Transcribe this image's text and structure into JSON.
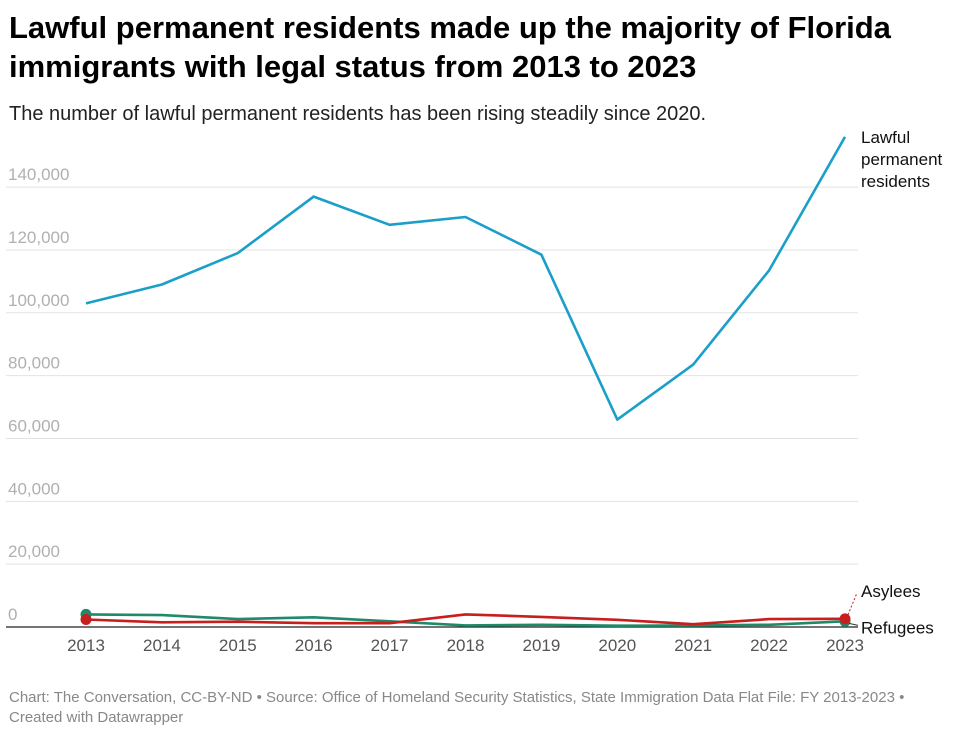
{
  "header": {
    "title": "Lawful permanent residents made up the majority of Florida immigrants with legal status from 2013 to 2023",
    "subtitle": "The number of lawful permanent residents has been rising steadily since 2020."
  },
  "footer": {
    "text": "Chart: The Conversation, CC-BY-ND • Source: Office of Homeland Security Statistics, State Immigration Data Flat File: FY 2013-2023 • Created with Datawrapper"
  },
  "chart_data": {
    "type": "line",
    "title": "Lawful permanent residents made up the majority of Florida immigrants with legal status from 2013 to 2023",
    "subtitle": "The number of lawful permanent residents has been rising steadily since 2020.",
    "x": [
      "2013",
      "2014",
      "2015",
      "2016",
      "2017",
      "2018",
      "2019",
      "2020",
      "2021",
      "2022",
      "2023"
    ],
    "ylim": [
      0,
      150000
    ],
    "yticks": [
      0,
      20000,
      40000,
      60000,
      80000,
      100000,
      120000,
      140000
    ],
    "ytick_labels": [
      "0",
      "20,000",
      "40,000",
      "60,000",
      "80,000",
      "100,000",
      "120,000",
      "140,000"
    ],
    "grid": true,
    "legend": "direct labels at right end of lines",
    "series": [
      {
        "name": "Lawful permanent residents",
        "label_lines": [
          "Lawful",
          "permanent",
          "residents"
        ],
        "color": "#1a9fc9",
        "values": [
          103000,
          109000,
          119000,
          137000,
          128000,
          130500,
          118500,
          66000,
          83500,
          113500,
          156000
        ]
      },
      {
        "name": "Asylees",
        "label_lines": [
          "Asylees"
        ],
        "color": "#c71e1e",
        "values": [
          2400,
          1500,
          1700,
          1200,
          1200,
          4000,
          3200,
          2300,
          900,
          2500,
          2600
        ]
      },
      {
        "name": "Refugees",
        "label_lines": [
          "Refugees"
        ],
        "color": "#1f8a6a",
        "values": [
          4000,
          3800,
          2500,
          3100,
          1800,
          500,
          700,
          400,
          500,
          700,
          1800
        ]
      }
    ]
  }
}
